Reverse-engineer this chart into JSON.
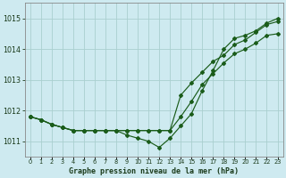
{
  "title": "Graphe pression niveau de la mer (hPa)",
  "background_color": "#ceeaf0",
  "grid_color": "#aacfcf",
  "line_color": "#1a5c1a",
  "ylim": [
    1010.5,
    1015.5
  ],
  "yticks": [
    1011,
    1012,
    1013,
    1014,
    1015
  ],
  "xlim": [
    -0.5,
    23.5
  ],
  "series1_x": [
    0,
    1,
    2,
    3,
    4,
    5,
    6,
    7,
    8,
    9,
    10,
    11,
    12,
    13,
    14,
    15,
    16,
    17,
    18,
    19,
    20,
    21,
    22,
    23
  ],
  "series1_y": [
    1011.8,
    1011.7,
    1011.55,
    1011.45,
    1011.35,
    1011.35,
    1011.35,
    1011.35,
    1011.35,
    1011.35,
    1011.35,
    1011.35,
    1011.35,
    1011.35,
    1011.8,
    1012.3,
    1012.85,
    1013.2,
    1013.55,
    1013.85,
    1014.0,
    1014.2,
    1014.45,
    1014.5
  ],
  "series2_x": [
    0,
    1,
    2,
    3,
    4,
    5,
    6,
    7,
    8,
    9,
    10,
    11,
    12,
    13,
    14,
    15,
    16,
    17,
    18,
    19,
    20,
    21,
    22,
    23
  ],
  "series2_y": [
    1011.8,
    1011.7,
    1011.55,
    1011.45,
    1011.35,
    1011.35,
    1011.35,
    1011.35,
    1011.35,
    1011.35,
    1011.35,
    1011.35,
    1011.35,
    1011.35,
    1012.5,
    1012.9,
    1013.25,
    1013.6,
    1013.8,
    1014.15,
    1014.3,
    1014.55,
    1014.8,
    1014.9
  ],
  "series3_x": [
    0,
    1,
    2,
    3,
    4,
    5,
    6,
    7,
    8,
    9,
    10,
    11,
    12,
    13,
    14,
    15,
    16,
    17,
    18,
    19,
    20,
    21,
    22,
    23
  ],
  "series3_y": [
    1011.8,
    1011.7,
    1011.55,
    1011.45,
    1011.35,
    1011.35,
    1011.35,
    1011.35,
    1011.35,
    1011.2,
    1011.1,
    1011.0,
    1010.8,
    1011.1,
    1011.5,
    1011.9,
    1012.65,
    1013.3,
    1014.0,
    1014.35,
    1014.45,
    1014.6,
    1014.85,
    1015.0
  ]
}
